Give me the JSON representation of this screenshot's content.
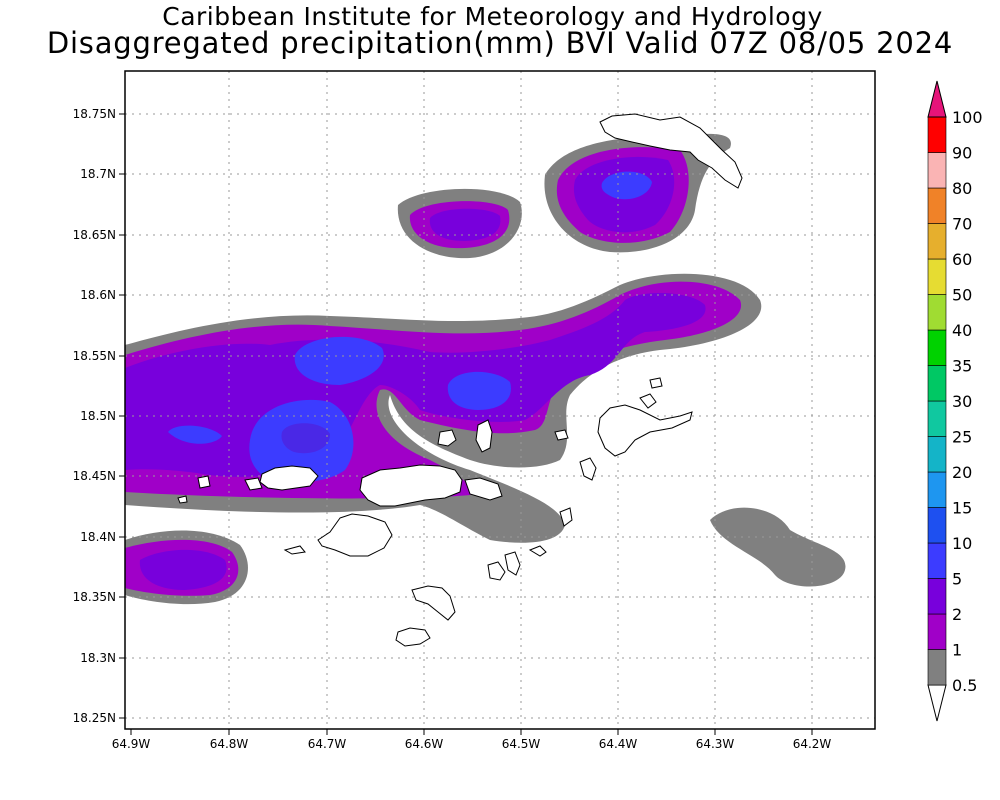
{
  "title_line1": "Caribbean Institute for Meteorology and Hydrology",
  "title_line2": "Disaggregated precipitation(mm) BVI Valid 07Z 08/05 2024",
  "axes": {
    "x_ticks": [
      "64.9W",
      "64.8W",
      "64.7W",
      "64.6W",
      "64.5W",
      "64.4W",
      "64.3W",
      "64.2W"
    ],
    "y_ticks": [
      "18.75N",
      "18.7N",
      "18.65N",
      "18.6N",
      "18.55N",
      "18.5N",
      "18.45N",
      "18.4N",
      "18.35N",
      "18.3N",
      "18.25N"
    ]
  },
  "colorbar": {
    "levels": [
      {
        "label": "0.5",
        "color": "#808080"
      },
      {
        "label": "1",
        "color": "#a000c8"
      },
      {
        "label": "2",
        "color": "#7800dc"
      },
      {
        "label": "5",
        "color": "#3c3cff"
      },
      {
        "label": "10",
        "color": "#1e50f0"
      },
      {
        "label": "15",
        "color": "#1e96f0"
      },
      {
        "label": "20",
        "color": "#14b4c8"
      },
      {
        "label": "25",
        "color": "#10c8a0"
      },
      {
        "label": "30",
        "color": "#00c864"
      },
      {
        "label": "35",
        "color": "#00d200"
      },
      {
        "label": "40",
        "color": "#a0dc32"
      },
      {
        "label": "50",
        "color": "#e6dc32"
      },
      {
        "label": "60",
        "color": "#e6af2d"
      },
      {
        "label": "70",
        "color": "#f08228"
      },
      {
        "label": "80",
        "color": "#fab4b4"
      },
      {
        "label": "90",
        "color": "#ff0000"
      },
      {
        "label": "100",
        "color": "#f03c3c"
      }
    ],
    "top_arrow_color": "#e6147a",
    "bottom_arrow_color": "#ffffff"
  },
  "colors": {
    "gray": "#808080",
    "magenta": "#a000c8",
    "purple": "#7800dc",
    "blue": "#3c3cff"
  }
}
